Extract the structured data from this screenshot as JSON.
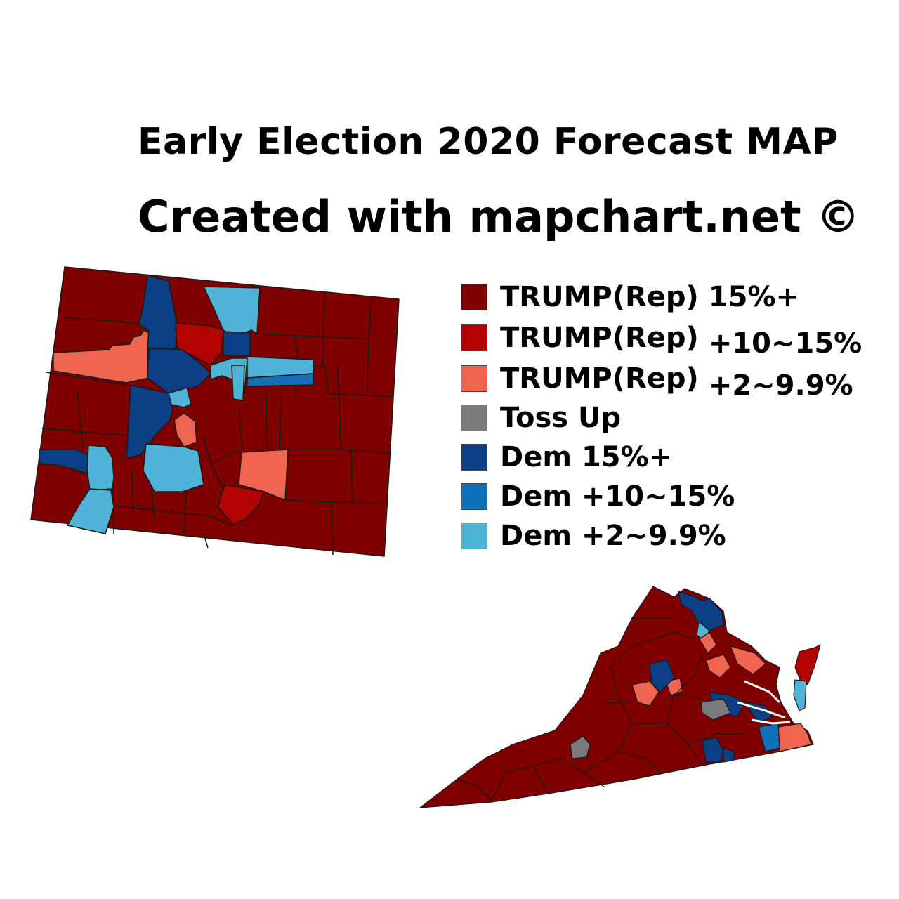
{
  "title": "Early Election 2020 Forecast MAP",
  "subtitle": "Created with mapchart.net ©",
  "colors": {
    "trump_15": "#800000",
    "trump_10_15": "#b30000",
    "trump_2_9": "#f0654f",
    "toss_up": "#7a7a7a",
    "dem_15": "#0c3f86",
    "dem_10_15": "#1070b8",
    "dem_2_9": "#4fb3d8",
    "border": "#1a1a1a"
  },
  "legend": [
    {
      "label": "TRUMP(Rep) 15%+",
      "range": "",
      "color": "#800000"
    },
    {
      "label": "TRUMP(Rep)",
      "range": "+10~15%",
      "color": "#b30000"
    },
    {
      "label": "TRUMP(Rep)",
      "range": "+2~9.9%",
      "color": "#f0654f"
    },
    {
      "label": "Toss Up",
      "range": "",
      "color": "#7a7a7a"
    },
    {
      "label": "Dem 15%+",
      "range": "",
      "color": "#0c3f86"
    },
    {
      "label": "Dem +10~15%",
      "range": "",
      "color": "#1070b8"
    },
    {
      "label": "Dem +2~9.9%",
      "range": "",
      "color": "#4fb3d8"
    }
  ],
  "maps": [
    "colorado-map",
    "virginia-map"
  ]
}
